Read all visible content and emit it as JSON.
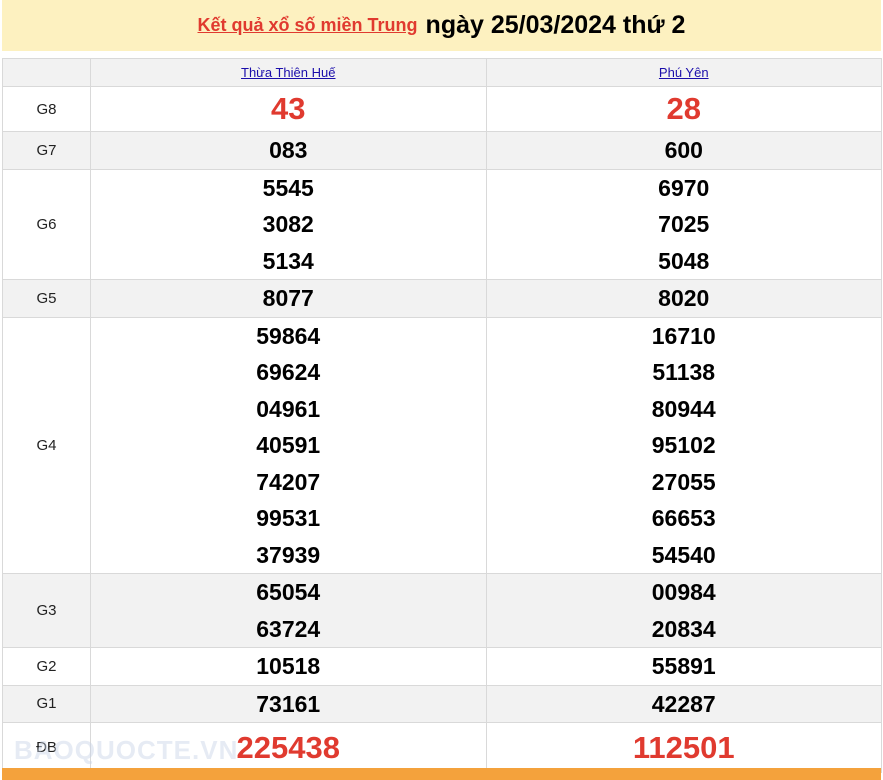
{
  "header": {
    "title_link": "Kết quả xổ số miền Trung",
    "title_date": "ngày 25/03/2024 thứ 2"
  },
  "provinces": [
    "Thừa Thiên Huế",
    "Phú Yên"
  ],
  "prizes": [
    {
      "label": "G8",
      "style": "big",
      "values": [
        [
          "43"
        ],
        [
          "28"
        ]
      ]
    },
    {
      "label": "G7",
      "values": [
        [
          "083"
        ],
        [
          "600"
        ]
      ]
    },
    {
      "label": "G6",
      "values": [
        [
          "5545",
          "3082",
          "5134"
        ],
        [
          "6970",
          "7025",
          "5048"
        ]
      ]
    },
    {
      "label": "G5",
      "values": [
        [
          "8077"
        ],
        [
          "8020"
        ]
      ]
    },
    {
      "label": "G4",
      "values": [
        [
          "59864",
          "69624",
          "04961",
          "40591",
          "74207",
          "99531",
          "37939"
        ],
        [
          "16710",
          "51138",
          "80944",
          "95102",
          "27055",
          "66653",
          "54540"
        ]
      ]
    },
    {
      "label": "G3",
      "values": [
        [
          "65054",
          "63724"
        ],
        [
          "00984",
          "20834"
        ]
      ]
    },
    {
      "label": "G2",
      "values": [
        [
          "10518"
        ],
        [
          "55891"
        ]
      ]
    },
    {
      "label": "G1",
      "values": [
        [
          "73161"
        ],
        [
          "42287"
        ]
      ]
    },
    {
      "label": "ĐB",
      "style": "special",
      "values": [
        [
          "225438"
        ],
        [
          "112501"
        ]
      ]
    }
  ],
  "watermark": "BAOQUOCTE.VN",
  "colors": {
    "accent_red": "#e03a2f",
    "title_bg": "#fdf1c0",
    "footer_bg": "#f4a23c",
    "link": "#1a0dab"
  }
}
